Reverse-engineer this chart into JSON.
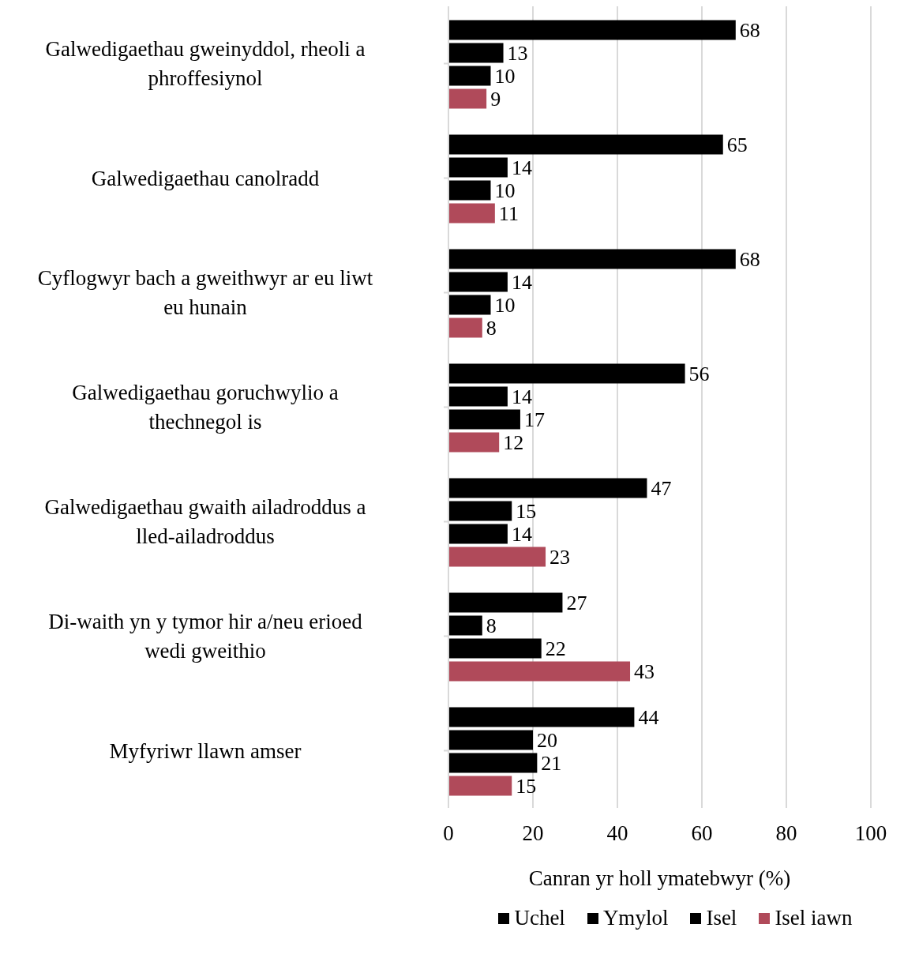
{
  "chart_data": {
    "type": "bar",
    "orientation": "horizontal",
    "categories": [
      "Galwedigaethau gweinyddol, rheoli a phroffesiynol",
      "Galwedigaethau canolradd",
      "Cyflogwyr bach a gweithwyr ar eu liwt eu hunain",
      "Galwedigaethau goruchwylio a thechnegol is",
      "Galwedigaethau gwaith ailadroddus a lled-ailadroddus",
      "Di-waith yn y tymor hir a/neu erioed wedi gweithio",
      "Myfyriwr llawn amser"
    ],
    "series": [
      {
        "name": "Uchel",
        "color": "#000000",
        "values": [
          68,
          65,
          68,
          56,
          47,
          27,
          44
        ]
      },
      {
        "name": "Ymylol",
        "color": "#000000",
        "values": [
          13,
          14,
          14,
          14,
          15,
          8,
          20
        ]
      },
      {
        "name": "Isel",
        "color": "#000000",
        "values": [
          10,
          10,
          10,
          17,
          14,
          22,
          21
        ]
      },
      {
        "name": "Isel iawn",
        "color": "#b04a5a",
        "values": [
          9,
          11,
          8,
          12,
          23,
          43,
          15
        ]
      }
    ],
    "xlabel": "Canran yr holl ymatebwyr (%)",
    "xlim": [
      0,
      100
    ],
    "xticks": [
      0,
      20,
      40,
      60,
      80,
      100
    ],
    "grid": "x",
    "legend": "bottom",
    "data_labels": true
  }
}
